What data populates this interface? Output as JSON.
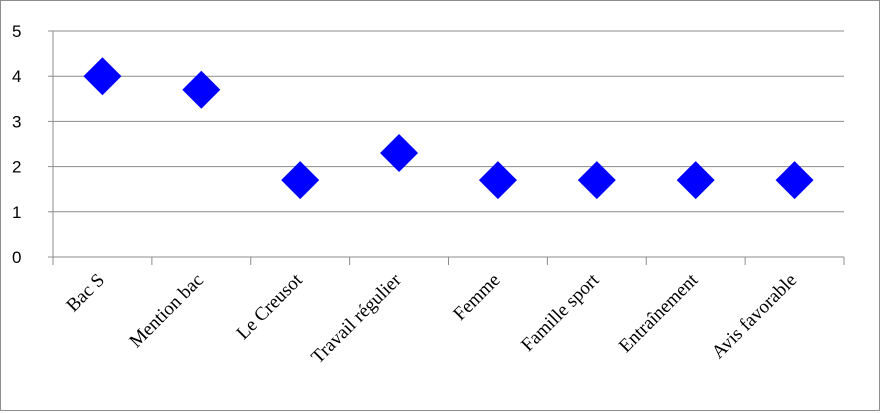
{
  "chart_data": {
    "type": "scatter",
    "categories": [
      "Bac S",
      "Mention bac",
      "Le Creusot",
      "Travail régulier",
      "Femme",
      "Famille sport",
      "Entraînement",
      "Avis favorable"
    ],
    "values": [
      4.0,
      3.7,
      1.7,
      2.3,
      1.7,
      1.7,
      1.7,
      1.7
    ],
    "ylim": [
      0,
      5
    ],
    "yticks": [
      "0",
      "1",
      "2",
      "3",
      "4",
      "5"
    ],
    "marker": "diamond",
    "grid": "horizontal",
    "legend": "none",
    "title": "",
    "xlabel": "",
    "ylabel": "",
    "colors": {
      "marker": "#0000ff",
      "gridline": "#8c8c8c",
      "axis": "#8c8c8c"
    }
  }
}
